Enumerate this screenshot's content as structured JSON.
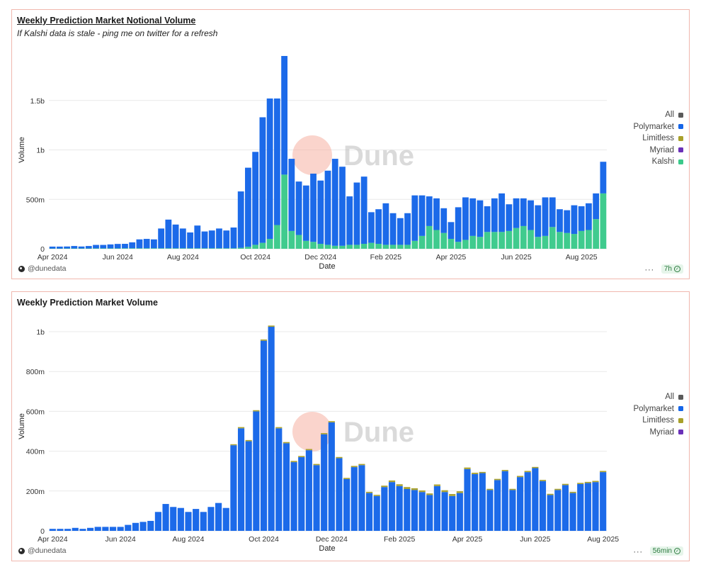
{
  "colors": {
    "polymarket": "#1565e8",
    "kalshi": "#3ac98a",
    "all": "#5a5a5a",
    "limitless": "#a8a02a",
    "myriad": "#6a30b8",
    "grid": "#e9e9e9",
    "axis_text": "#333333",
    "panel_border": "#f0b8ae"
  },
  "panel1": {
    "title": "Weekly Prediction Market Notional Volume",
    "subtitle": "If Kalshi data is stale - ping me on twitter for a refresh",
    "watermark": "Dune",
    "footer_author": "@dunedata",
    "footer_more": "···",
    "footer_badge": "7h",
    "legend": [
      {
        "label": "All",
        "color": "#5a5a5a"
      },
      {
        "label": "Polymarket",
        "color": "#1565e8"
      },
      {
        "label": "Limitless",
        "color": "#a8a02a"
      },
      {
        "label": "Myriad",
        "color": "#6a30b8"
      },
      {
        "label": "Kalshi",
        "color": "#3ac98a"
      }
    ]
  },
  "panel2": {
    "title": "Weekly Prediction Market Volume",
    "watermark": "Dune",
    "footer_author": "@dunedata",
    "footer_more": "···",
    "footer_badge": "56min",
    "legend": [
      {
        "label": "All",
        "color": "#5a5a5a"
      },
      {
        "label": "Polymarket",
        "color": "#1565e8"
      },
      {
        "label": "Limitless",
        "color": "#a8a02a"
      },
      {
        "label": "Myriad",
        "color": "#6a30b8"
      }
    ]
  },
  "chart_data": [
    {
      "type": "bar",
      "stacked": true,
      "title": "Weekly Prediction Market Notional Volume",
      "xlabel": "Date",
      "ylabel": "Volume",
      "ylim": [
        0,
        2000000000
      ],
      "yticks": [
        0,
        500000000,
        1000000000,
        1500000000
      ],
      "ytick_labels": [
        "0",
        "500m",
        "1b",
        "1.5b"
      ],
      "xtick_labels": [
        "Apr 2024",
        "Jun 2024",
        "Aug 2024",
        "Oct 2024",
        "Dec 2024",
        "Feb 2025",
        "Apr 2025",
        "Jun 2025",
        "Aug 2025"
      ],
      "xtick_indices": [
        0,
        9,
        18,
        28,
        37,
        46,
        55,
        64,
        73
      ],
      "grid": true,
      "legend_position": "right",
      "series": [
        {
          "name": "Kalshi",
          "values": [
            2000000,
            2000000,
            3000000,
            3000000,
            3000000,
            3000000,
            4000000,
            4000000,
            4000000,
            4000000,
            5000000,
            5000000,
            5000000,
            5000000,
            5000000,
            5000000,
            5000000,
            5000000,
            5000000,
            5000000,
            5000000,
            5000000,
            5000000,
            5000000,
            5000000,
            5000000,
            10000000,
            20000000,
            40000000,
            60000000,
            100000000,
            240000000,
            750000000,
            180000000,
            140000000,
            80000000,
            70000000,
            50000000,
            40000000,
            30000000,
            30000000,
            40000000,
            40000000,
            50000000,
            60000000,
            50000000,
            40000000,
            40000000,
            40000000,
            40000000,
            80000000,
            130000000,
            230000000,
            190000000,
            160000000,
            100000000,
            70000000,
            90000000,
            130000000,
            120000000,
            170000000,
            170000000,
            170000000,
            180000000,
            210000000,
            230000000,
            190000000,
            120000000,
            130000000,
            220000000,
            170000000,
            160000000,
            150000000,
            180000000,
            190000000,
            300000000,
            560000000
          ]
        },
        {
          "name": "Polymarket",
          "values": [
            20000000,
            20000000,
            20000000,
            25000000,
            20000000,
            25000000,
            35000000,
            35000000,
            40000000,
            45000000,
            45000000,
            60000000,
            90000000,
            95000000,
            90000000,
            200000000,
            290000000,
            240000000,
            200000000,
            160000000,
            230000000,
            170000000,
            180000000,
            200000000,
            180000000,
            210000000,
            570000000,
            800000000,
            940000000,
            1270000000,
            1420000000,
            1280000000,
            1200000000,
            730000000,
            540000000,
            560000000,
            690000000,
            640000000,
            750000000,
            880000000,
            800000000,
            490000000,
            630000000,
            680000000,
            310000000,
            350000000,
            420000000,
            320000000,
            270000000,
            320000000,
            460000000,
            410000000,
            300000000,
            320000000,
            250000000,
            170000000,
            350000000,
            430000000,
            380000000,
            370000000,
            260000000,
            340000000,
            390000000,
            270000000,
            300000000,
            280000000,
            300000000,
            320000000,
            390000000,
            300000000,
            230000000,
            230000000,
            290000000,
            250000000,
            270000000,
            260000000,
            320000000
          ]
        },
        {
          "name": "Limitless",
          "values": []
        },
        {
          "name": "Myriad",
          "values": []
        }
      ]
    },
    {
      "type": "bar",
      "stacked": true,
      "title": "Weekly Prediction Market Volume",
      "xlabel": "Date",
      "ylabel": "Volume",
      "ylim": [
        0,
        1050000000
      ],
      "yticks": [
        0,
        200000000,
        400000000,
        600000000,
        800000000,
        1000000000
      ],
      "ytick_labels": [
        "0",
        "200m",
        "400m",
        "600m",
        "800m",
        "1b"
      ],
      "xtick_labels": [
        "Apr 2024",
        "Jun 2024",
        "Aug 2024",
        "Oct 2024",
        "Dec 2024",
        "Feb 2025",
        "Apr 2025",
        "Jun 2025",
        "Aug 2025"
      ],
      "xtick_indices": [
        0,
        9,
        18,
        28,
        37,
        46,
        55,
        64,
        73
      ],
      "grid": true,
      "legend_position": "right",
      "series": [
        {
          "name": "Polymarket",
          "values": [
            10000000,
            10000000,
            10000000,
            15000000,
            10000000,
            15000000,
            20000000,
            20000000,
            20000000,
            20000000,
            30000000,
            40000000,
            45000000,
            50000000,
            95000000,
            135000000,
            120000000,
            115000000,
            95000000,
            110000000,
            95000000,
            120000000,
            140000000,
            115000000,
            430000000,
            515000000,
            450000000,
            600000000,
            955000000,
            1025000000,
            515000000,
            440000000,
            345000000,
            370000000,
            405000000,
            330000000,
            485000000,
            545000000,
            365000000,
            260000000,
            320000000,
            330000000,
            190000000,
            175000000,
            220000000,
            245000000,
            225000000,
            210000000,
            205000000,
            195000000,
            180000000,
            225000000,
            195000000,
            175000000,
            190000000,
            310000000,
            285000000,
            290000000,
            205000000,
            255000000,
            300000000,
            205000000,
            270000000,
            295000000,
            315000000,
            250000000,
            180000000,
            205000000,
            230000000,
            190000000,
            235000000,
            240000000,
            245000000,
            295000000
          ]
        },
        {
          "name": "Limitless",
          "values": [
            0,
            0,
            0,
            0,
            0,
            0,
            0,
            0,
            0,
            0,
            0,
            0,
            0,
            0,
            0,
            0,
            0,
            0,
            0,
            0,
            0,
            0,
            0,
            0,
            5000000,
            6000000,
            6000000,
            6000000,
            6000000,
            6000000,
            6000000,
            6000000,
            6000000,
            6000000,
            6000000,
            6000000,
            6000000,
            6000000,
            6000000,
            6000000,
            6000000,
            6000000,
            6000000,
            6000000,
            7000000,
            8000000,
            9000000,
            10000000,
            9000000,
            8000000,
            8000000,
            8000000,
            9000000,
            10000000,
            9000000,
            8000000,
            7000000,
            6000000,
            6000000,
            6000000,
            6000000,
            6000000,
            6000000,
            6000000,
            6000000,
            6000000,
            6000000,
            6000000,
            6000000,
            6000000,
            6000000,
            6000000,
            6000000,
            6000000
          ]
        },
        {
          "name": "Myriad",
          "values": []
        },
        {
          "name": "All",
          "values": []
        }
      ]
    }
  ]
}
